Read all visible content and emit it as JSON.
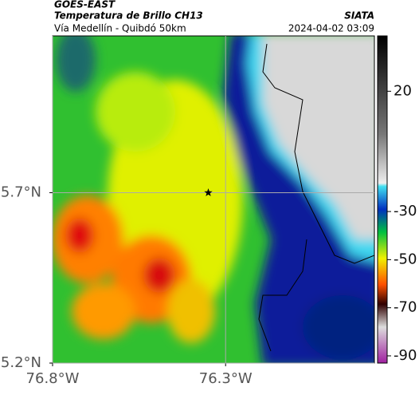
{
  "header": {
    "satellite": "GOES-EAST",
    "product": "Temperatura de Brillo CH13",
    "agency": "SIATA",
    "region": "Vía Medellín - Quibdó 50km",
    "timestamp": "2024-04-02 03:09"
  },
  "map": {
    "xlim": [
      -76.8,
      -75.87
    ],
    "ylim": [
      5.2,
      6.16
    ],
    "xticks": [
      {
        "value": -76.8,
        "label": "76.8°W"
      },
      {
        "value": -76.3,
        "label": "76.3°W"
      }
    ],
    "yticks": [
      {
        "value": 5.2,
        "label": "5.2°N"
      },
      {
        "value": 5.7,
        "label": "5.7°N"
      }
    ],
    "grid": true,
    "marker": {
      "lon": -76.35,
      "lat": 5.7
    }
  },
  "colorbar": {
    "lim": [
      -93,
      43
    ],
    "ticks": [
      20,
      -30,
      -50,
      -70,
      -90
    ]
  }
}
